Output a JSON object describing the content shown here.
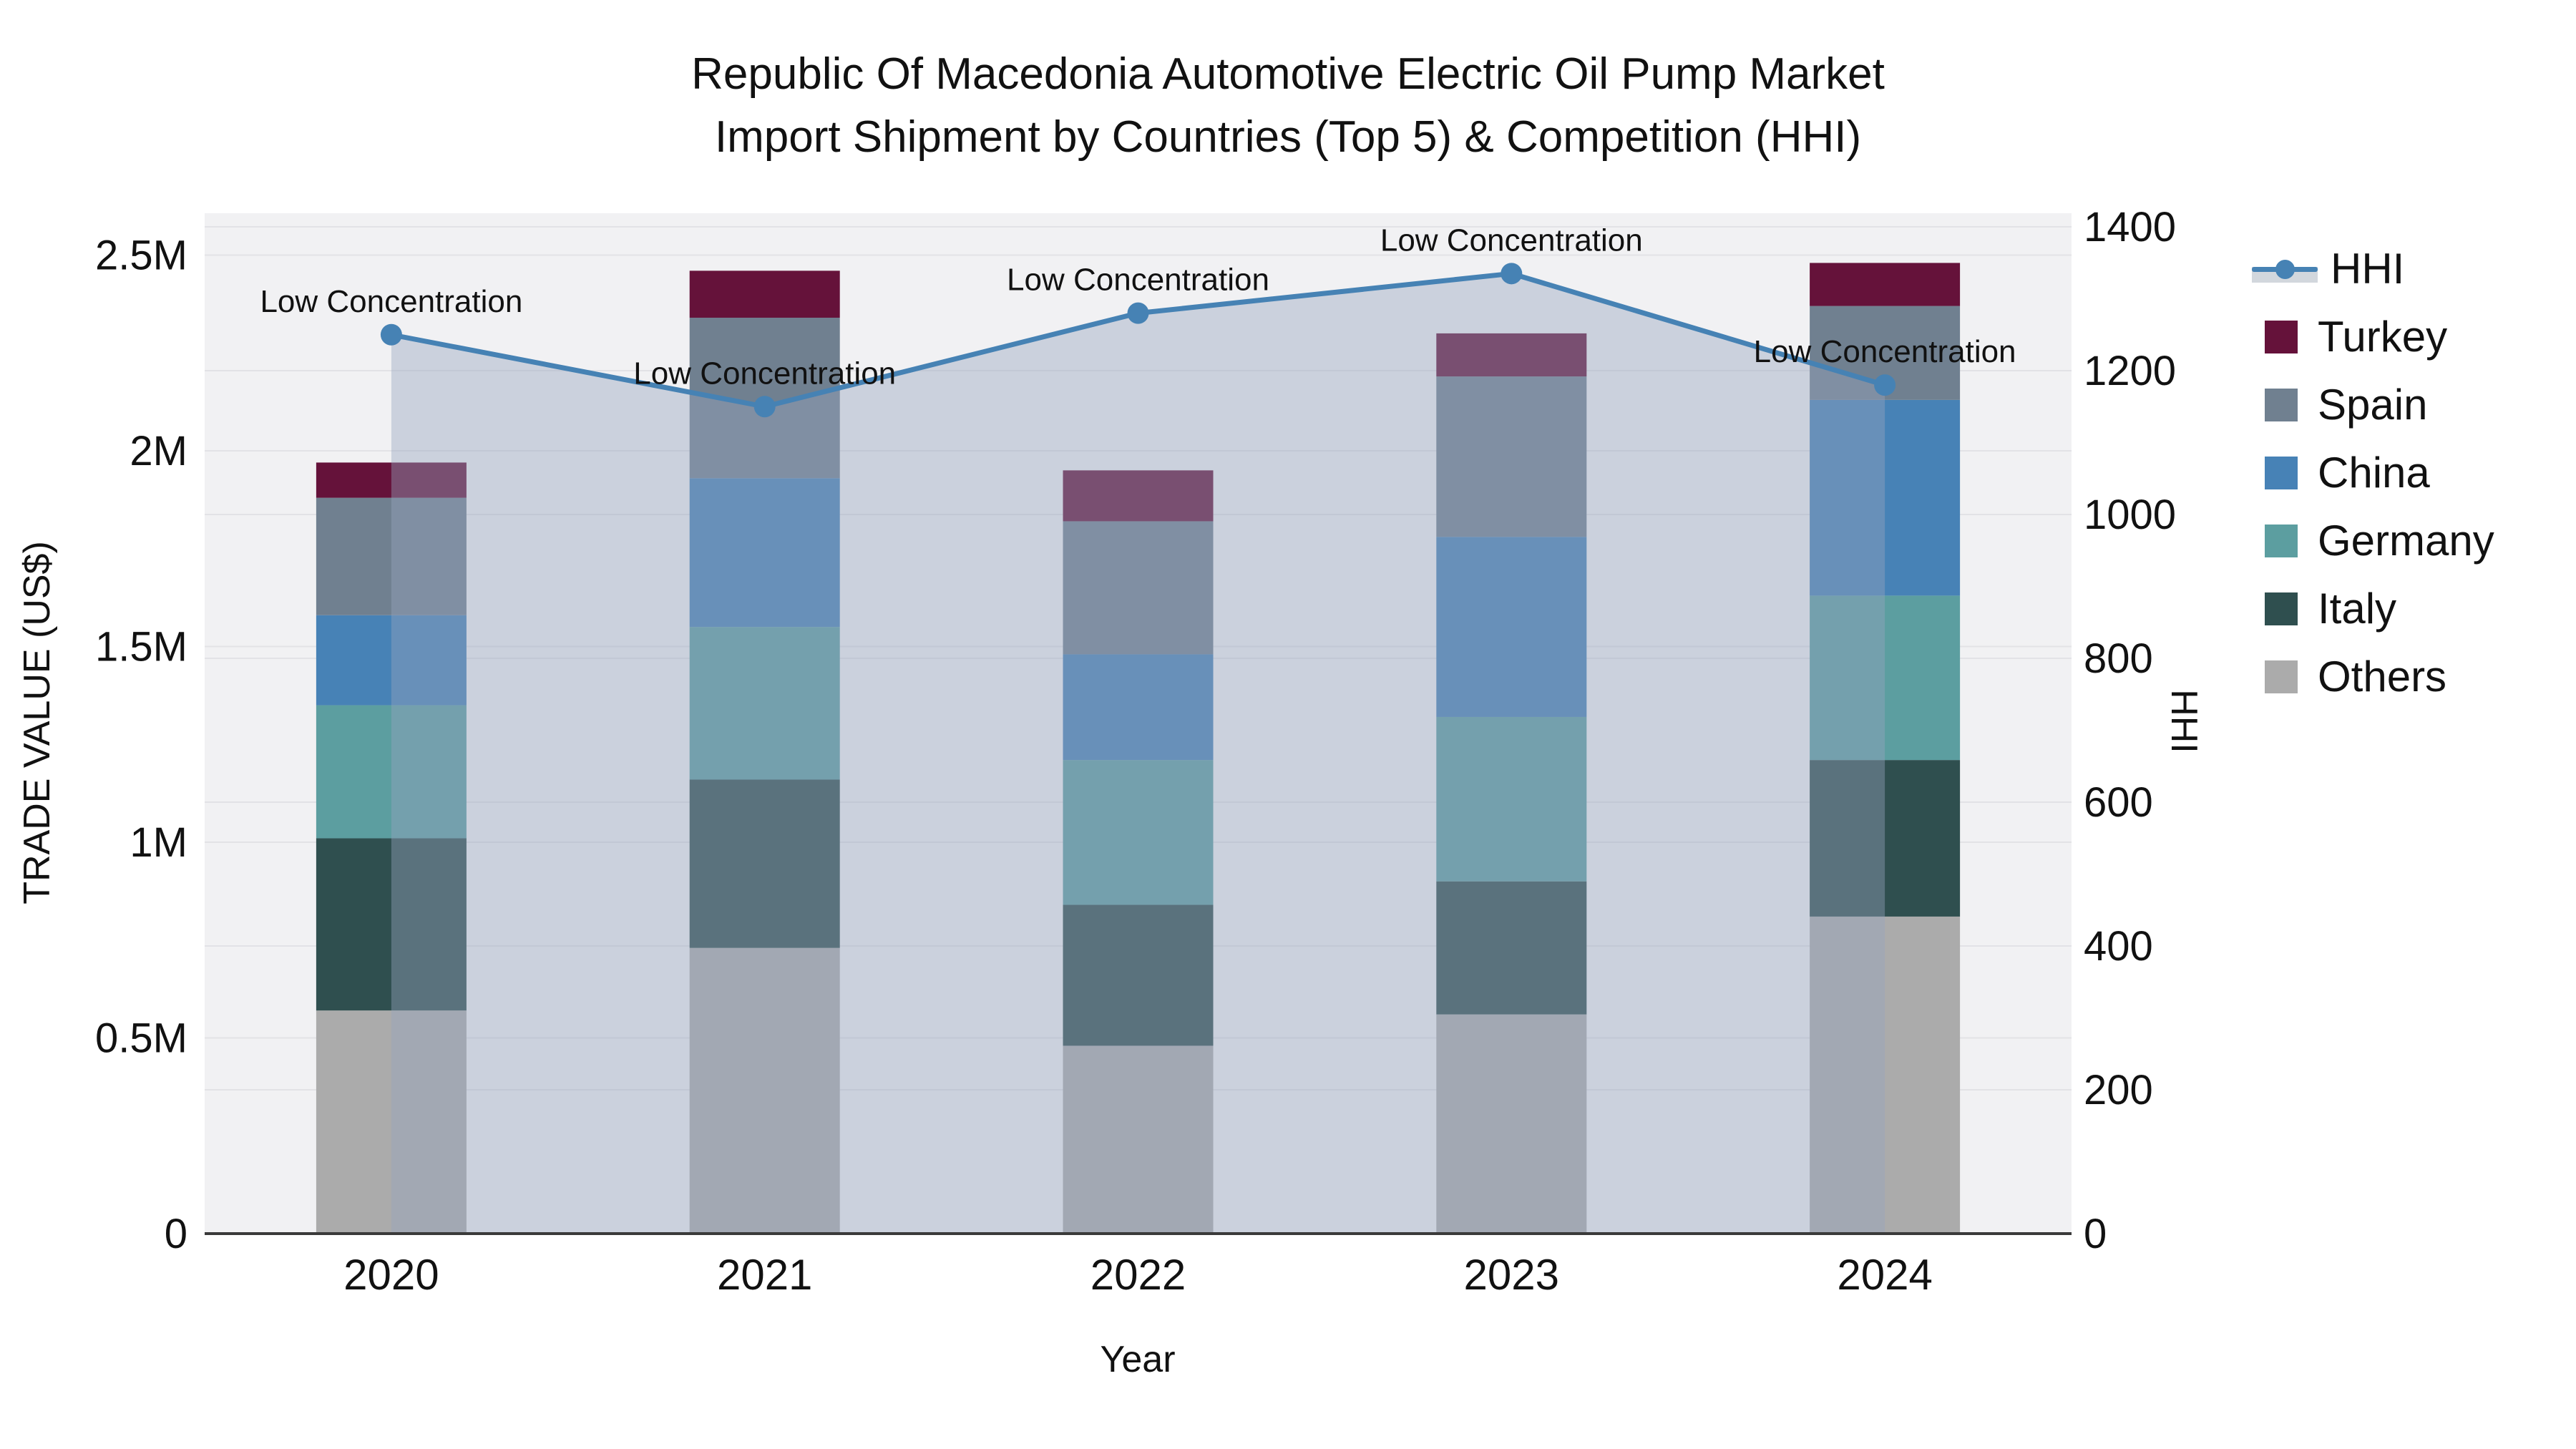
{
  "title": {
    "line1": "Republic Of Macedonia Automotive Electric Oil Pump Market",
    "line2": "Import Shipment by Countries (Top 5) & Competition (HHI)"
  },
  "axes": {
    "left_title": "TRADE VALUE (US$)",
    "right_title": "HHI",
    "x_title": "Year",
    "left_ticks": [
      "0",
      "0.5M",
      "1M",
      "1.5M",
      "2M",
      "2.5M"
    ],
    "left_tick_values": [
      0,
      500000,
      1000000,
      1500000,
      2000000,
      2500000
    ],
    "right_ticks": [
      "0",
      "200",
      "400",
      "600",
      "800",
      "1000",
      "1200",
      "1400"
    ],
    "right_tick_values": [
      0,
      200,
      400,
      600,
      800,
      1000,
      1200,
      1400
    ]
  },
  "legend": {
    "items": [
      {
        "label": "HHI",
        "type": "line",
        "color": "#4682b4"
      },
      {
        "label": "Turkey",
        "type": "box",
        "color": "#65123a"
      },
      {
        "label": "Spain",
        "type": "box",
        "color": "#708090"
      },
      {
        "label": "China",
        "type": "box",
        "color": "#4782b6"
      },
      {
        "label": "Germany",
        "type": "box",
        "color": "#5c9ea0"
      },
      {
        "label": "Italy",
        "type": "box",
        "color": "#2f4f4f"
      },
      {
        "label": "Others",
        "type": "box",
        "color": "#ababab"
      }
    ]
  },
  "chart_data": {
    "type": "stacked-bar+line",
    "title": "Republic Of Macedonia Automotive Electric Oil Pump Market Import Shipment by Countries (Top 5) & Competition (HHI)",
    "categories": [
      "2020",
      "2021",
      "2022",
      "2023",
      "2024"
    ],
    "xlabel": "Year",
    "ylabel_left": "TRADE VALUE (US$)",
    "ylabel_right": "HHI",
    "ylim_left": [
      0,
      2600000
    ],
    "ylim_right": [
      0,
      1400
    ],
    "grid": true,
    "legend_position": "right",
    "bar_series_bottom_to_top": [
      {
        "name": "Others",
        "color": "#ababab",
        "values": [
          570000,
          730000,
          480000,
          560000,
          810000
        ]
      },
      {
        "name": "Italy",
        "color": "#2f4f4f",
        "values": [
          440000,
          430000,
          360000,
          340000,
          400000
        ]
      },
      {
        "name": "Germany",
        "color": "#5c9ea0",
        "values": [
          340000,
          390000,
          370000,
          420000,
          420000
        ]
      },
      {
        "name": "China",
        "color": "#4782b6",
        "values": [
          230000,
          380000,
          270000,
          460000,
          500000
        ]
      },
      {
        "name": "Spain",
        "color": "#708090",
        "values": [
          300000,
          410000,
          340000,
          410000,
          240000
        ]
      },
      {
        "name": "Turkey",
        "color": "#65123a",
        "values": [
          90000,
          120000,
          130000,
          110000,
          110000
        ]
      }
    ],
    "bar_totals": [
      1970000,
      2460000,
      1950000,
      2300000,
      2480000
    ],
    "line_series": {
      "name": "HHI",
      "color": "#4682b4",
      "area_fill": "rgba(150,165,190,0.42)",
      "values": [
        1250,
        1150,
        1280,
        1335,
        1180
      ]
    },
    "annotations": [
      "Low Concentration",
      "Low Concentration",
      "Low Concentration",
      "Low Concentration",
      "Low Concentration"
    ]
  },
  "colors": {
    "plot_background": "#f1f1f3",
    "gridline": "#e2e2e6",
    "axis_line": "#3a3a3a",
    "text": "#111111"
  }
}
